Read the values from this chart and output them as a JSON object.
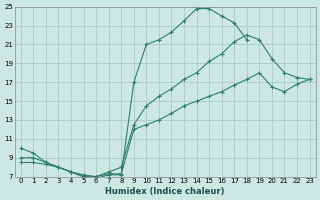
{
  "xlabel": "Humidex (Indice chaleur)",
  "bg_color": "#cde8e2",
  "grid_color": "#a0c8c0",
  "line_color": "#2e7d70",
  "xlim": [
    -0.5,
    23.5
  ],
  "ylim": [
    7,
    25
  ],
  "xticks": [
    0,
    1,
    2,
    3,
    4,
    5,
    6,
    7,
    8,
    9,
    10,
    11,
    12,
    13,
    14,
    15,
    16,
    17,
    18,
    19,
    20,
    21,
    22,
    23
  ],
  "yticks": [
    7,
    9,
    11,
    13,
    15,
    17,
    19,
    21,
    23,
    25
  ],
  "s1_x": [
    0,
    1,
    2,
    3,
    4,
    5,
    6,
    7,
    8,
    9,
    10,
    11,
    12,
    13,
    14,
    15,
    16,
    17,
    18
  ],
  "s1_y": [
    10,
    9.5,
    8.5,
    8.0,
    7.5,
    7.0,
    6.8,
    7.2,
    7.2,
    17.0,
    21.0,
    21.5,
    22.3,
    23.5,
    24.8,
    24.8,
    24.0,
    23.3,
    21.5
  ],
  "s2_x": [
    0,
    1,
    2,
    3,
    4,
    5,
    6,
    7,
    8,
    9,
    10,
    11,
    12,
    13,
    14,
    15,
    16,
    17,
    18,
    19,
    20,
    21,
    22,
    23
  ],
  "s2_y": [
    9.0,
    9.0,
    8.5,
    8.0,
    7.5,
    7.2,
    7.0,
    7.5,
    8.0,
    12.5,
    14.5,
    15.5,
    16.3,
    17.3,
    18.0,
    19.2,
    20.0,
    21.3,
    22.0,
    21.5,
    19.5,
    18.0,
    17.5,
    17.3
  ],
  "s3_x": [
    0,
    1,
    2,
    3,
    4,
    5,
    6,
    7,
    8,
    9,
    10,
    11,
    12,
    13,
    14,
    15,
    16,
    17,
    18,
    19,
    20,
    21,
    22,
    23
  ],
  "s3_y": [
    8.5,
    8.5,
    8.3,
    8.0,
    7.5,
    7.0,
    7.0,
    7.3,
    7.3,
    12.0,
    12.5,
    13.0,
    13.7,
    14.5,
    15.0,
    15.5,
    16.0,
    16.7,
    17.3,
    18.0,
    16.5,
    16.0,
    16.8,
    17.3
  ]
}
